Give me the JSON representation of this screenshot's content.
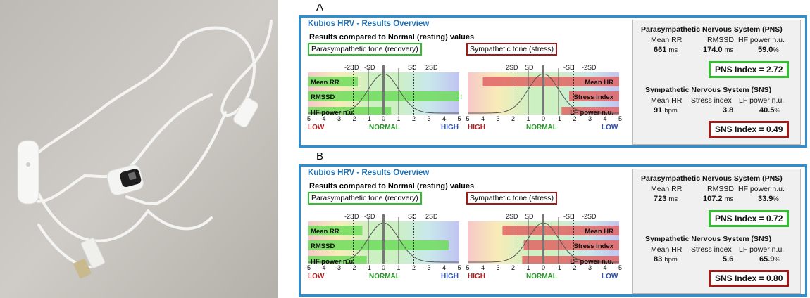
{
  "panels": [
    {
      "letter": "A",
      "title": "Kubios HRV - Results Overview",
      "compare_label": "Results compared to Normal (resting) values",
      "pns_tone": "Parasympathetic tone (recovery)",
      "sns_tone": "Sympathetic tone (stress)",
      "left_sd_labels": [
        "-2SD",
        "-SD",
        "SD",
        "2SD"
      ],
      "right_sd_labels": [
        "2SD",
        "SD",
        "-SD",
        "-2SD"
      ],
      "left_bars": [
        {
          "label": "Mean RR",
          "value": -1.7
        },
        {
          "label": "RMSSD",
          "value": 5
        },
        {
          "label": "HF power n.u.",
          "value": 0.5
        }
      ],
      "right_bars": [
        {
          "label": "Mean HR",
          "value": 4
        },
        {
          "label": "Stress index",
          "value": -1.7
        },
        {
          "label": "LF power n.u.",
          "value": -1.2
        }
      ],
      "overflow_mark": "!",
      "left_ticks": [
        "-5",
        "-4",
        "-3",
        "-2",
        "-1",
        "0",
        "1",
        "2",
        "3",
        "4",
        "5"
      ],
      "right_ticks": [
        "5",
        "4",
        "3",
        "2",
        "1",
        "0",
        "-1",
        "-2",
        "-3",
        "-4",
        "-5"
      ],
      "left_range": {
        "low": "LOW",
        "normal": "NORMAL",
        "high": "HIGH"
      },
      "right_range": {
        "high": "HIGH",
        "normal": "NORMAL",
        "low": "LOW"
      },
      "pns": {
        "title": "Parasympathetic Nervous System (PNS)",
        "labels": [
          "Mean RR",
          "RMSSD",
          "HF power n.u."
        ],
        "values": [
          "661",
          "174.0",
          "59.0"
        ],
        "units": [
          "ms",
          "ms",
          "%"
        ],
        "index": "PNS Index = 2.72"
      },
      "sns": {
        "title": "Sympathetic Nervous System (SNS)",
        "labels": [
          "Mean HR",
          "Stress index",
          "LF power n.u."
        ],
        "values": [
          "91",
          "3.8",
          "40.5"
        ],
        "units": [
          "bpm",
          "",
          "%"
        ],
        "index": "SNS Index = 0.49"
      }
    },
    {
      "letter": "B",
      "title": "Kubios HRV - Results Overview",
      "compare_label": "Results compared to Normal (resting) values",
      "pns_tone": "Parasympathetic tone (recovery)",
      "sns_tone": "Sympathetic tone (stress)",
      "left_sd_labels": [
        "-2SD",
        "-SD",
        "SD",
        "2SD"
      ],
      "right_sd_labels": [
        "2SD",
        "SD",
        "-SD",
        "-2SD"
      ],
      "left_bars": [
        {
          "label": "Mean RR",
          "value": -1.4
        },
        {
          "label": "RMSSD",
          "value": 4.3
        },
        {
          "label": "HF power n.u.",
          "value": -1.1
        }
      ],
      "right_bars": [
        {
          "label": "Mean HR",
          "value": 2.7
        },
        {
          "label": "Stress index",
          "value": 1.3
        },
        {
          "label": "LF power n.u.",
          "value": 1.4
        }
      ],
      "overflow_mark": "",
      "left_ticks": [
        "-5",
        "-4",
        "-3",
        "-2",
        "-1",
        "0",
        "1",
        "2",
        "3",
        "4",
        "5"
      ],
      "right_ticks": [
        "5",
        "4",
        "3",
        "2",
        "1",
        "0",
        "-1",
        "-2",
        "-3",
        "-4",
        "-5"
      ],
      "left_range": {
        "low": "LOW",
        "normal": "NORMAL",
        "high": "HIGH"
      },
      "right_range": {
        "high": "HIGH",
        "normal": "NORMAL",
        "low": "LOW"
      },
      "pns": {
        "title": "Parasympathetic Nervous System (PNS)",
        "labels": [
          "Mean RR",
          "RMSSD",
          "HF power n.u."
        ],
        "values": [
          "723",
          "107.2",
          "33.9"
        ],
        "units": [
          "ms",
          "ms",
          "%"
        ],
        "index": "PNS Index = 0.72"
      },
      "sns": {
        "title": "Sympathetic Nervous System (SNS)",
        "labels": [
          "Mean HR",
          "Stress index",
          "LF power n.u."
        ],
        "values": [
          "83",
          "5.6",
          "65.9"
        ],
        "units": [
          "bpm",
          "",
          "%"
        ],
        "index": "SNS Index = 0.80"
      }
    }
  ]
}
